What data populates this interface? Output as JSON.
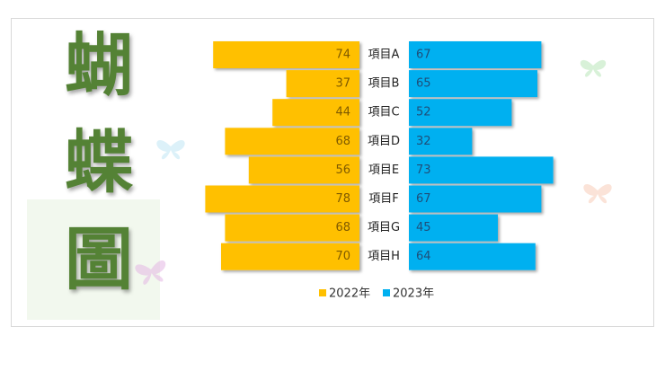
{
  "chart_data": {
    "type": "butterfly",
    "title": "蝴蝶圖",
    "categories": [
      "項目A",
      "項目B",
      "項目C",
      "項目D",
      "項目E",
      "項目F",
      "項目G",
      "項目H"
    ],
    "series": [
      {
        "name": "2022年",
        "color": "#FFC000",
        "values": [
          74,
          37,
          44,
          68,
          56,
          78,
          68,
          70
        ]
      },
      {
        "name": "2023年",
        "color": "#00B0F0",
        "values": [
          67,
          65,
          52,
          32,
          73,
          67,
          45,
          64
        ]
      }
    ]
  }
}
